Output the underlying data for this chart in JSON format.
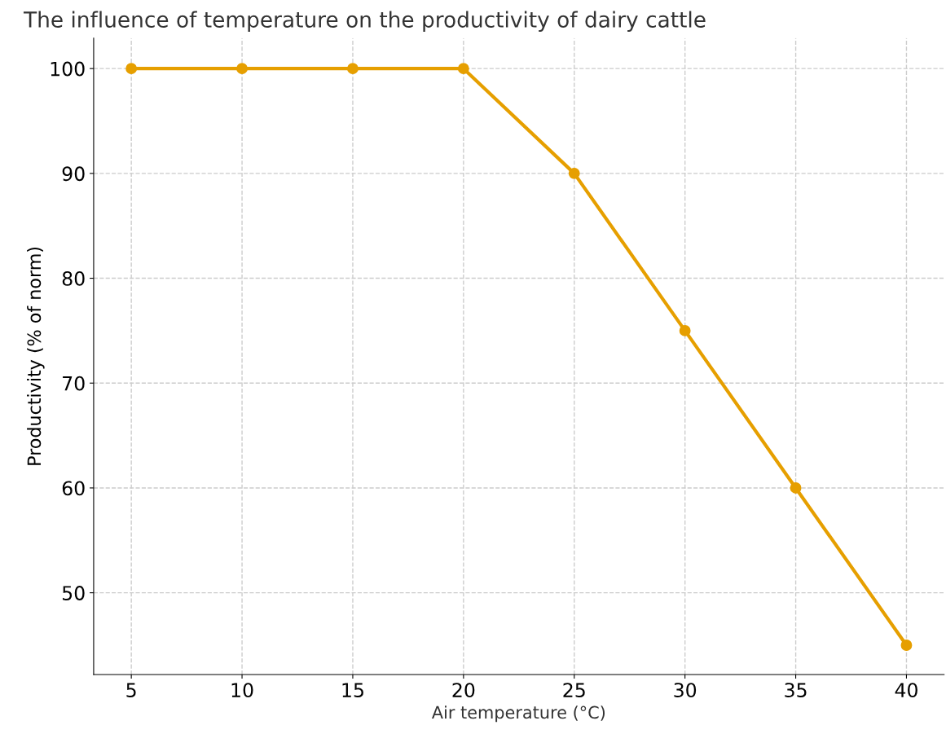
{
  "chart_data": {
    "type": "line",
    "title": "The influence of temperature on the productivity of dairy cattle",
    "xlabel": "Air temperature (°C)",
    "ylabel": "Productivity (% of norm)",
    "x": [
      5,
      10,
      15,
      20,
      25,
      30,
      35,
      40
    ],
    "series": [
      {
        "color": "#e69f00",
        "values": [
          100,
          100,
          100,
          100,
          90,
          75,
          60,
          45
        ]
      }
    ],
    "xlim": [
      3.3,
      41.7
    ],
    "ylim": [
      42.2,
      102.9
    ],
    "xticks": [
      5,
      10,
      15,
      20,
      25,
      30,
      35,
      40
    ],
    "yticks": [
      50,
      60,
      70,
      80,
      90,
      100
    ],
    "grid": true,
    "marker": "circle",
    "line_style": "solid"
  }
}
